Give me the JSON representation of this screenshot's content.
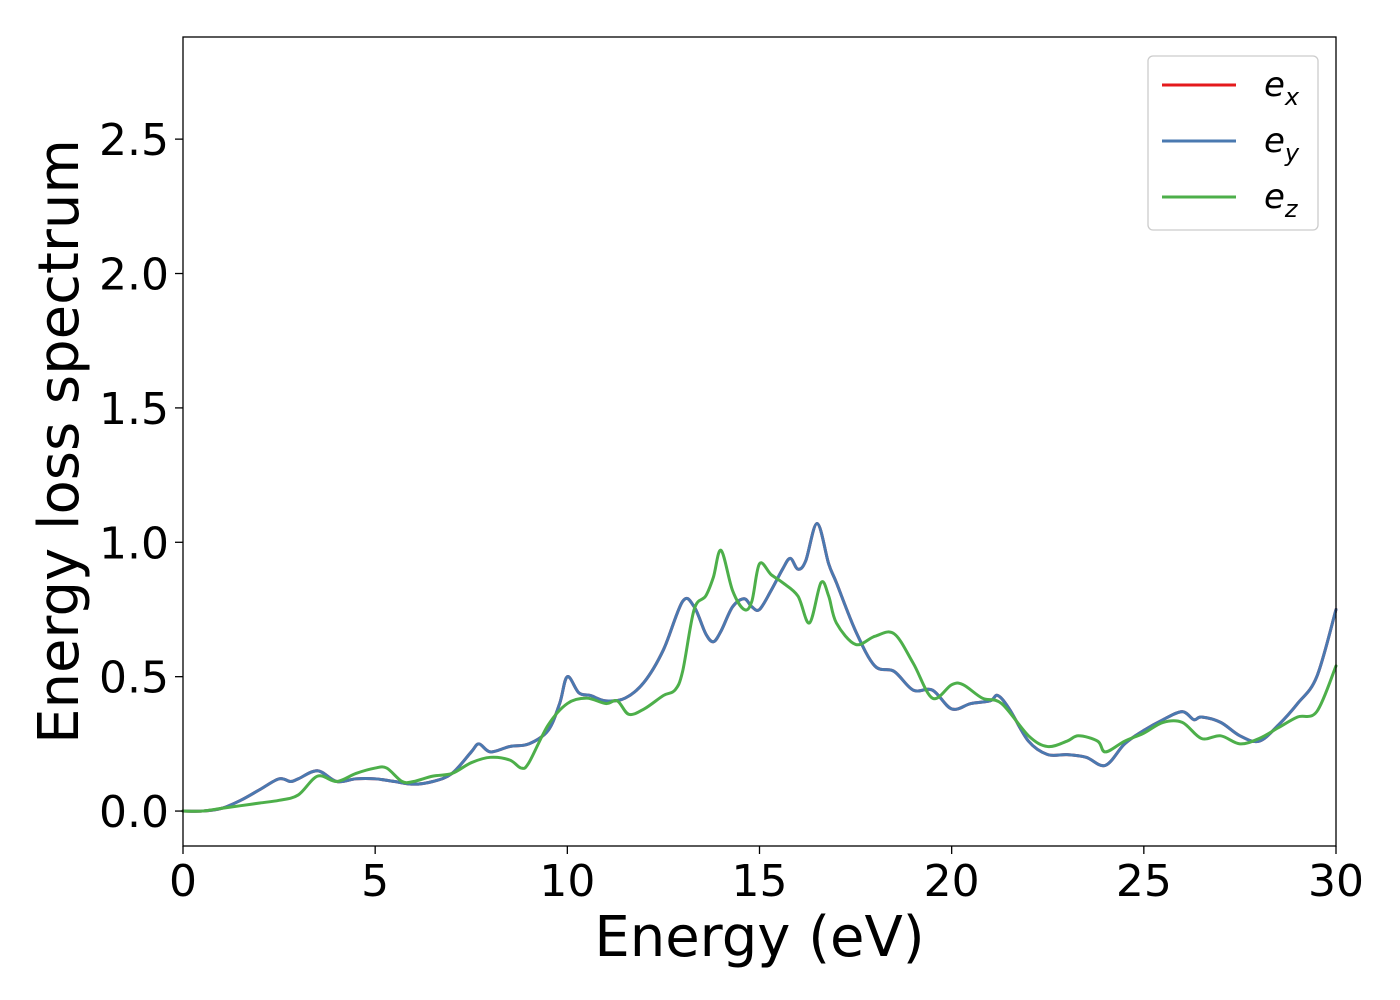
{
  "chart_data": {
    "type": "line",
    "xlabel": "Energy (eV)",
    "ylabel": "Energy loss spectrum",
    "xlim": [
      0,
      30
    ],
    "ylim": [
      -0.13,
      2.88
    ],
    "xticks": [
      0,
      5,
      10,
      15,
      20,
      25,
      30
    ],
    "yticks": [
      0.0,
      0.5,
      1.0,
      1.5,
      2.0,
      2.5
    ],
    "xtick_labels": [
      "0",
      "5",
      "10",
      "15",
      "20",
      "25",
      "30"
    ],
    "ytick_labels": [
      "0.0",
      "0.5",
      "1.0",
      "1.5",
      "2.0",
      "2.5"
    ],
    "grid": false,
    "legend_position": "top-right",
    "series": [
      {
        "name": "e_x",
        "legend_base": "e",
        "legend_sub": "x",
        "color": "#e41a1c",
        "x": [
          0,
          0.5,
          1,
          1.5,
          2,
          2.5,
          2.8,
          3,
          3.5,
          4,
          4.5,
          5,
          5.5,
          6,
          6.5,
          7,
          7.5,
          7.7,
          8,
          8.5,
          9,
          9.5,
          9.8,
          10,
          10.3,
          10.6,
          11,
          11.5,
          12,
          12.5,
          13,
          13.3,
          13.6,
          13.8,
          14,
          14.3,
          14.6,
          14.8,
          15,
          15.3,
          15.6,
          15.8,
          16,
          16.2,
          16.5,
          16.8,
          17,
          17.5,
          18,
          18.5,
          19,
          19.5,
          20,
          20.5,
          21,
          21.2,
          21.5,
          22,
          22.5,
          23,
          23.5,
          24,
          24.5,
          25,
          25.5,
          26,
          26.3,
          26.5,
          27,
          27.5,
          28,
          28.5,
          29,
          29.5,
          30
        ],
        "y": [
          0,
          0,
          0.01,
          0.04,
          0.08,
          0.12,
          0.11,
          0.12,
          0.15,
          0.11,
          0.12,
          0.12,
          0.11,
          0.1,
          0.11,
          0.14,
          0.22,
          0.25,
          0.22,
          0.24,
          0.25,
          0.3,
          0.4,
          0.5,
          0.44,
          0.43,
          0.41,
          0.42,
          0.48,
          0.6,
          0.78,
          0.76,
          0.66,
          0.63,
          0.67,
          0.76,
          0.79,
          0.76,
          0.75,
          0.82,
          0.9,
          0.94,
          0.9,
          0.93,
          1.07,
          0.92,
          0.85,
          0.67,
          0.54,
          0.52,
          0.45,
          0.45,
          0.38,
          0.4,
          0.41,
          0.43,
          0.38,
          0.26,
          0.21,
          0.21,
          0.2,
          0.17,
          0.25,
          0.3,
          0.34,
          0.37,
          0.34,
          0.35,
          0.33,
          0.28,
          0.26,
          0.32,
          0.4,
          0.5,
          0.75
        ]
      },
      {
        "name": "e_y",
        "legend_base": "e",
        "legend_sub": "y",
        "color": "#4a79b0",
        "x": [
          0,
          0.5,
          1,
          1.5,
          2,
          2.5,
          2.8,
          3,
          3.5,
          4,
          4.5,
          5,
          5.5,
          6,
          6.5,
          7,
          7.5,
          7.7,
          8,
          8.5,
          9,
          9.5,
          9.8,
          10,
          10.3,
          10.6,
          11,
          11.5,
          12,
          12.5,
          13,
          13.3,
          13.6,
          13.8,
          14,
          14.3,
          14.6,
          14.8,
          15,
          15.3,
          15.6,
          15.8,
          16,
          16.2,
          16.5,
          16.8,
          17,
          17.5,
          18,
          18.5,
          19,
          19.5,
          20,
          20.5,
          21,
          21.2,
          21.5,
          22,
          22.5,
          23,
          23.5,
          24,
          24.5,
          25,
          25.5,
          26,
          26.3,
          26.5,
          27,
          27.5,
          28,
          28.5,
          29,
          29.5,
          30
        ],
        "y": [
          0,
          0,
          0.01,
          0.04,
          0.08,
          0.12,
          0.11,
          0.12,
          0.15,
          0.11,
          0.12,
          0.12,
          0.11,
          0.1,
          0.11,
          0.14,
          0.22,
          0.25,
          0.22,
          0.24,
          0.25,
          0.3,
          0.4,
          0.5,
          0.44,
          0.43,
          0.41,
          0.42,
          0.48,
          0.6,
          0.78,
          0.76,
          0.66,
          0.63,
          0.67,
          0.76,
          0.79,
          0.76,
          0.75,
          0.82,
          0.9,
          0.94,
          0.9,
          0.93,
          1.07,
          0.92,
          0.85,
          0.67,
          0.54,
          0.52,
          0.45,
          0.45,
          0.38,
          0.4,
          0.41,
          0.43,
          0.38,
          0.26,
          0.21,
          0.21,
          0.2,
          0.17,
          0.25,
          0.3,
          0.34,
          0.37,
          0.34,
          0.35,
          0.33,
          0.28,
          0.26,
          0.32,
          0.4,
          0.5,
          0.75
        ]
      },
      {
        "name": "e_z",
        "legend_base": "e",
        "legend_sub": "z",
        "color": "#4daf4a",
        "x": [
          0,
          0.5,
          1,
          1.5,
          2,
          2.5,
          3,
          3.5,
          4,
          4.5,
          5,
          5.3,
          5.7,
          6,
          6.5,
          7,
          7.5,
          8,
          8.5,
          8.8,
          9,
          9.5,
          10,
          10.5,
          11,
          11.3,
          11.6,
          12,
          12.5,
          12.8,
          13,
          13.3,
          13.6,
          13.8,
          14,
          14.3,
          14.6,
          14.8,
          15,
          15.3,
          15.6,
          16,
          16.3,
          16.6,
          16.8,
          17,
          17.5,
          18,
          18.5,
          19,
          19.5,
          20,
          20.3,
          20.8,
          21.3,
          22,
          22.5,
          23,
          23.3,
          23.8,
          24,
          24.5,
          25,
          25.5,
          26,
          26.5,
          27,
          27.5,
          28,
          28.5,
          29,
          29.5,
          30
        ],
        "y": [
          0,
          0,
          0.01,
          0.02,
          0.03,
          0.04,
          0.06,
          0.13,
          0.11,
          0.14,
          0.16,
          0.16,
          0.11,
          0.11,
          0.13,
          0.14,
          0.18,
          0.2,
          0.19,
          0.16,
          0.18,
          0.32,
          0.4,
          0.42,
          0.4,
          0.41,
          0.36,
          0.38,
          0.43,
          0.45,
          0.52,
          0.75,
          0.8,
          0.87,
          0.97,
          0.82,
          0.75,
          0.78,
          0.92,
          0.88,
          0.85,
          0.8,
          0.7,
          0.85,
          0.8,
          0.7,
          0.62,
          0.65,
          0.66,
          0.55,
          0.42,
          0.47,
          0.47,
          0.42,
          0.4,
          0.28,
          0.24,
          0.26,
          0.28,
          0.26,
          0.22,
          0.26,
          0.29,
          0.33,
          0.33,
          0.27,
          0.28,
          0.25,
          0.27,
          0.31,
          0.35,
          0.37,
          0.54
        ]
      }
    ]
  }
}
